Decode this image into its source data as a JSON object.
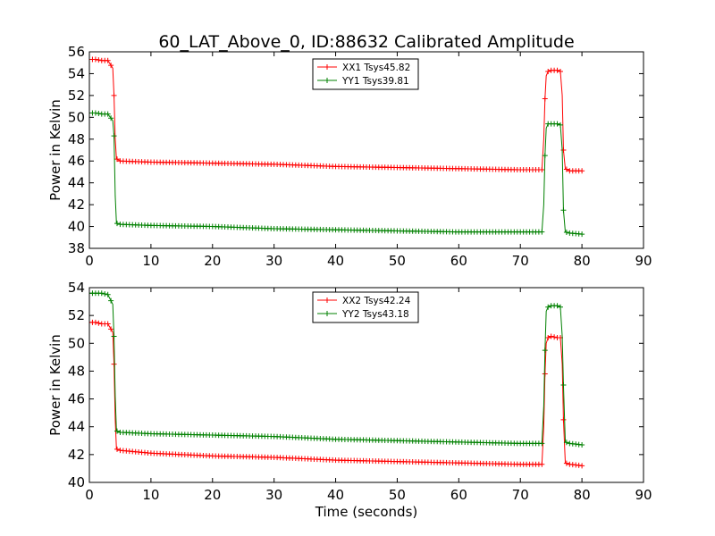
{
  "figure": {
    "title": "60_LAT_Above_0, ID:88632 Calibrated Amplitude"
  },
  "colors": {
    "xx": "#ff0000",
    "yy": "#008000",
    "axis": "#000000",
    "background": "#ffffff"
  },
  "chart_data": [
    {
      "type": "line",
      "title": "60_LAT_Above_0, ID:88632 Calibrated Amplitude",
      "xlabel": "",
      "ylabel": "Power in Kelvin",
      "xlim": [
        0,
        90
      ],
      "ylim": [
        38,
        56
      ],
      "xticks": [
        0,
        10,
        20,
        30,
        40,
        50,
        60,
        70,
        80,
        90
      ],
      "yticks": [
        38,
        40,
        42,
        44,
        46,
        48,
        50,
        52,
        54,
        56
      ],
      "grid": false,
      "legend": "top-center",
      "marker": "+",
      "series": [
        {
          "name": "XX1 Tsys45.82",
          "color": "#ff0000",
          "x": [
            0,
            1,
            2,
            3,
            3.8,
            4.0,
            4.2,
            4.4,
            5,
            10,
            20,
            30,
            40,
            50,
            60,
            70,
            73.5,
            73.8,
            74.0,
            74.2,
            74.5,
            75,
            76,
            76.5,
            76.8,
            77.0,
            77.3,
            78,
            80
          ],
          "y": [
            55.3,
            55.3,
            55.2,
            55.2,
            54.5,
            52.0,
            48.0,
            46.2,
            46.0,
            45.9,
            45.8,
            45.7,
            45.5,
            45.4,
            45.3,
            45.2,
            45.2,
            48.0,
            51.7,
            53.8,
            54.2,
            54.3,
            54.3,
            54.2,
            52.0,
            47.0,
            45.3,
            45.1,
            45.1
          ]
        },
        {
          "name": "YY1 Tsys39.81",
          "color": "#008000",
          "x": [
            0,
            1,
            2,
            3,
            3.8,
            4.0,
            4.2,
            4.4,
            5,
            10,
            20,
            30,
            40,
            50,
            60,
            70,
            73.5,
            73.8,
            74.0,
            74.2,
            74.5,
            75,
            76,
            76.5,
            76.8,
            77.0,
            77.3,
            78,
            80
          ],
          "y": [
            50.4,
            50.4,
            50.3,
            50.3,
            49.7,
            48.3,
            42.8,
            40.3,
            40.2,
            40.1,
            40.0,
            39.8,
            39.7,
            39.6,
            39.5,
            39.5,
            39.5,
            42.0,
            46.5,
            49.0,
            49.4,
            49.4,
            49.4,
            49.3,
            47.0,
            41.5,
            39.5,
            39.4,
            39.3
          ]
        }
      ]
    },
    {
      "type": "line",
      "title": "",
      "xlabel": "Time (seconds)",
      "ylabel": "Power in Kelvin",
      "xlim": [
        0,
        90
      ],
      "ylim": [
        40,
        54
      ],
      "xticks": [
        0,
        10,
        20,
        30,
        40,
        50,
        60,
        70,
        80,
        90
      ],
      "yticks": [
        40,
        42,
        44,
        46,
        48,
        50,
        52,
        54
      ],
      "grid": false,
      "legend": "top-center",
      "marker": "+",
      "series": [
        {
          "name": "XX2 Tsys42.24",
          "color": "#ff0000",
          "x": [
            0,
            1,
            2,
            3,
            3.8,
            4.0,
            4.2,
            4.4,
            5,
            10,
            20,
            30,
            40,
            50,
            60,
            70,
            73.5,
            73.8,
            74.0,
            74.2,
            74.5,
            75,
            76,
            76.5,
            76.8,
            77.0,
            77.3,
            78,
            80
          ],
          "y": [
            51.5,
            51.5,
            51.4,
            51.4,
            50.8,
            48.5,
            44.5,
            42.4,
            42.3,
            42.1,
            41.9,
            41.8,
            41.6,
            41.5,
            41.4,
            41.3,
            41.3,
            44.0,
            47.8,
            50.0,
            50.4,
            50.5,
            50.4,
            50.4,
            48.5,
            44.5,
            41.4,
            41.3,
            41.2
          ]
        },
        {
          "name": "YY2 Tsys43.18",
          "color": "#008000",
          "x": [
            0,
            1,
            2,
            3,
            3.8,
            4.0,
            4.2,
            4.4,
            5,
            10,
            20,
            30,
            40,
            50,
            60,
            70,
            73.5,
            73.8,
            74.0,
            74.2,
            74.5,
            75,
            76,
            76.5,
            76.8,
            77.0,
            77.3,
            78,
            80
          ],
          "y": [
            53.6,
            53.6,
            53.6,
            53.5,
            52.8,
            50.5,
            46.2,
            43.7,
            43.6,
            43.5,
            43.4,
            43.3,
            43.1,
            43.0,
            42.9,
            42.8,
            42.8,
            45.5,
            49.5,
            52.3,
            52.6,
            52.7,
            52.7,
            52.6,
            50.5,
            47.0,
            42.9,
            42.8,
            42.7
          ]
        }
      ]
    }
  ]
}
